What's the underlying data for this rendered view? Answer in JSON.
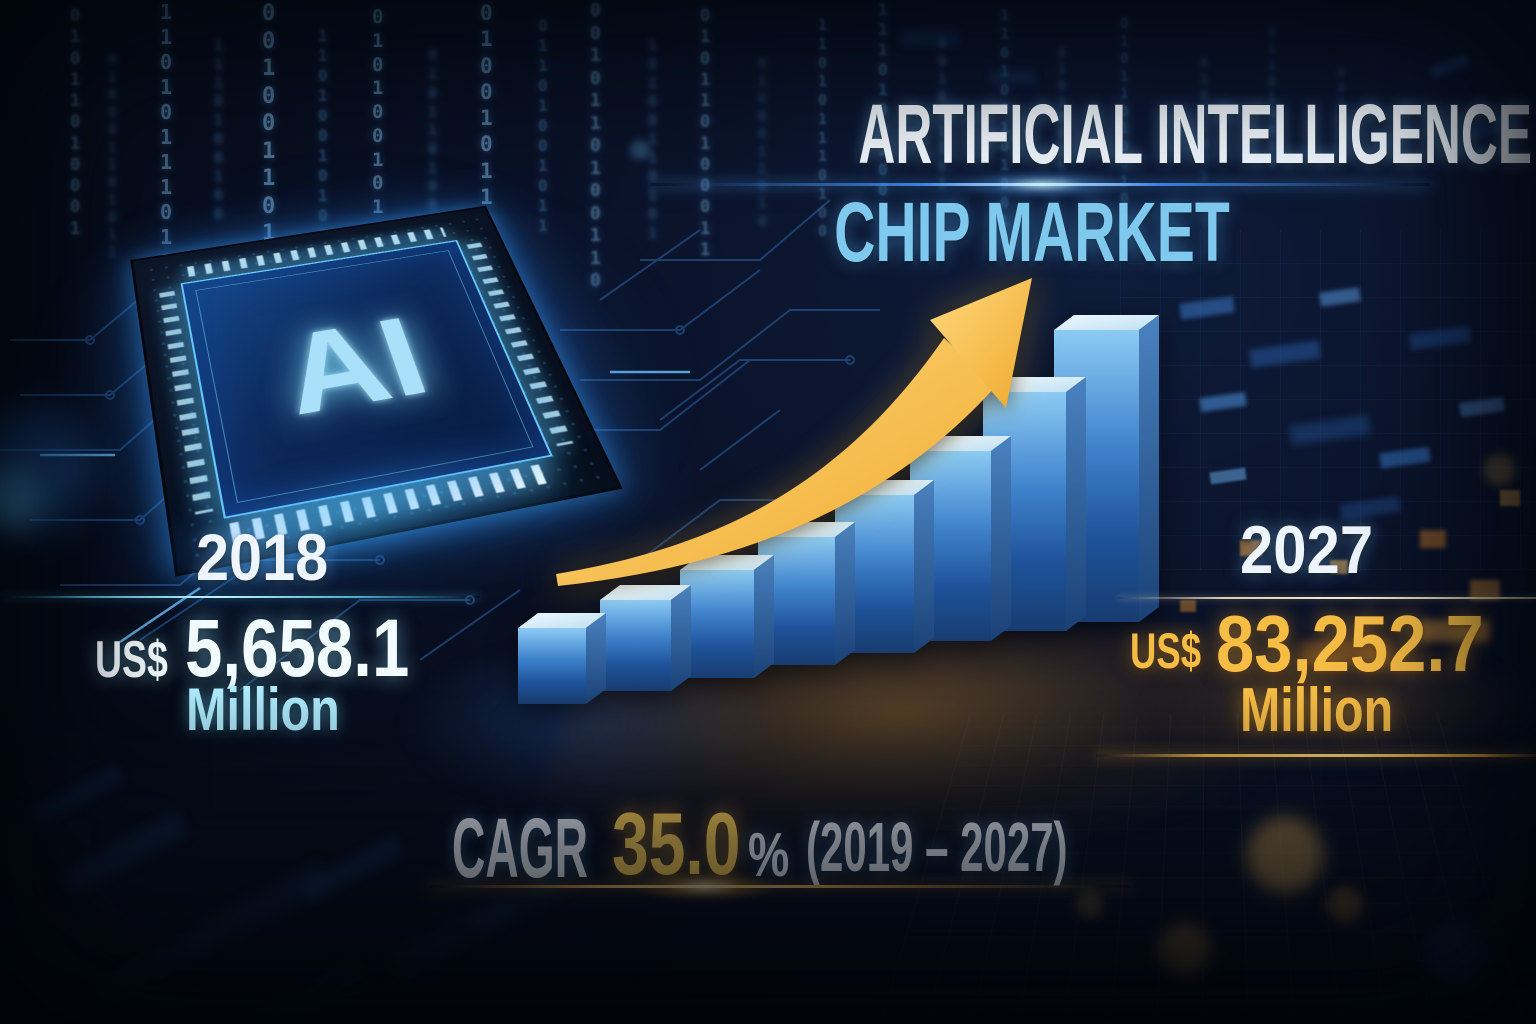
{
  "title": {
    "line1": "ARTIFICIAL INTELLIGENCE",
    "line2": "CHIP MARKET"
  },
  "chip_label": "AI",
  "stat_2018": {
    "year": "2018",
    "currency": "US$",
    "value": "5,658.1",
    "unit": "Million"
  },
  "stat_2027": {
    "year": "2027",
    "currency": "US$",
    "value": "83,252.7",
    "unit": "Million"
  },
  "cagr": {
    "label": "CAGR",
    "value": "35.0",
    "percent_sign": "%",
    "period": "(2019 – 2027)"
  },
  "colors": {
    "background": "#081020",
    "title_primary": "#eff5fc",
    "title_secondary": "#7fc8ee",
    "accent_cyan": "#aeeafb",
    "accent_gold": "#f6bd45",
    "bar_blue_light": "#8ccbf4",
    "bar_blue_dark": "#173c70",
    "arrow_gold": "#f3b94a"
  },
  "chart_data": {
    "type": "bar",
    "title": "Artificial Intelligence Chip Market",
    "description": "Illustrative unlabeled 3D bar chart of market growth with golden upward trend arrow",
    "bars_count": 8,
    "relative_heights": [
      0.26,
      0.31,
      0.37,
      0.44,
      0.54,
      0.65,
      0.82,
      1.0
    ],
    "annotations": {
      "start_year": "2018",
      "start_value_usd_million": 5658.1,
      "end_year": "2027",
      "end_value_usd_million": 83252.7,
      "cagr_percent": 35.0,
      "cagr_period": "2019 – 2027"
    },
    "legend": "none",
    "axes": "none (decorative infographic bars)"
  },
  "decor": {
    "binary_digits": "01011010001101011101001001101001010010110100101101001011010011010110010101"
  }
}
